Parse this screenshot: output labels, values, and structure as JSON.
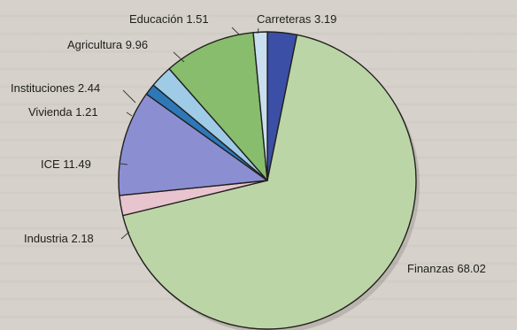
{
  "chart_data": {
    "type": "pie",
    "title": "",
    "slices": [
      {
        "label": "Carreteras",
        "value": 3.19,
        "display": "Carreteras 3.19",
        "color": "#3c4fa6"
      },
      {
        "label": "Finanzas",
        "value": 68.02,
        "display": "Finanzas 68.02",
        "color": "#bcd5a7"
      },
      {
        "label": "Industria",
        "value": 2.18,
        "display": "Industria 2.18",
        "color": "#e8c4cf"
      },
      {
        "label": "ICE",
        "value": 11.49,
        "display": "ICE 11.49",
        "color": "#8b8fd2"
      },
      {
        "label": "Vivienda",
        "value": 1.21,
        "display": "Vivienda 1.21",
        "color": "#2e78b8"
      },
      {
        "label": "Instituciones",
        "value": 2.44,
        "display": "Instituciones 2.44",
        "color": "#9fcbe6"
      },
      {
        "label": "Agricultura",
        "value": 9.96,
        "display": "Agricultura 9.96",
        "color": "#87bd6d"
      },
      {
        "label": "Educación",
        "value": 1.51,
        "display": "Educación 1.51",
        "color": "#c9dff0"
      }
    ],
    "legend": "none"
  }
}
